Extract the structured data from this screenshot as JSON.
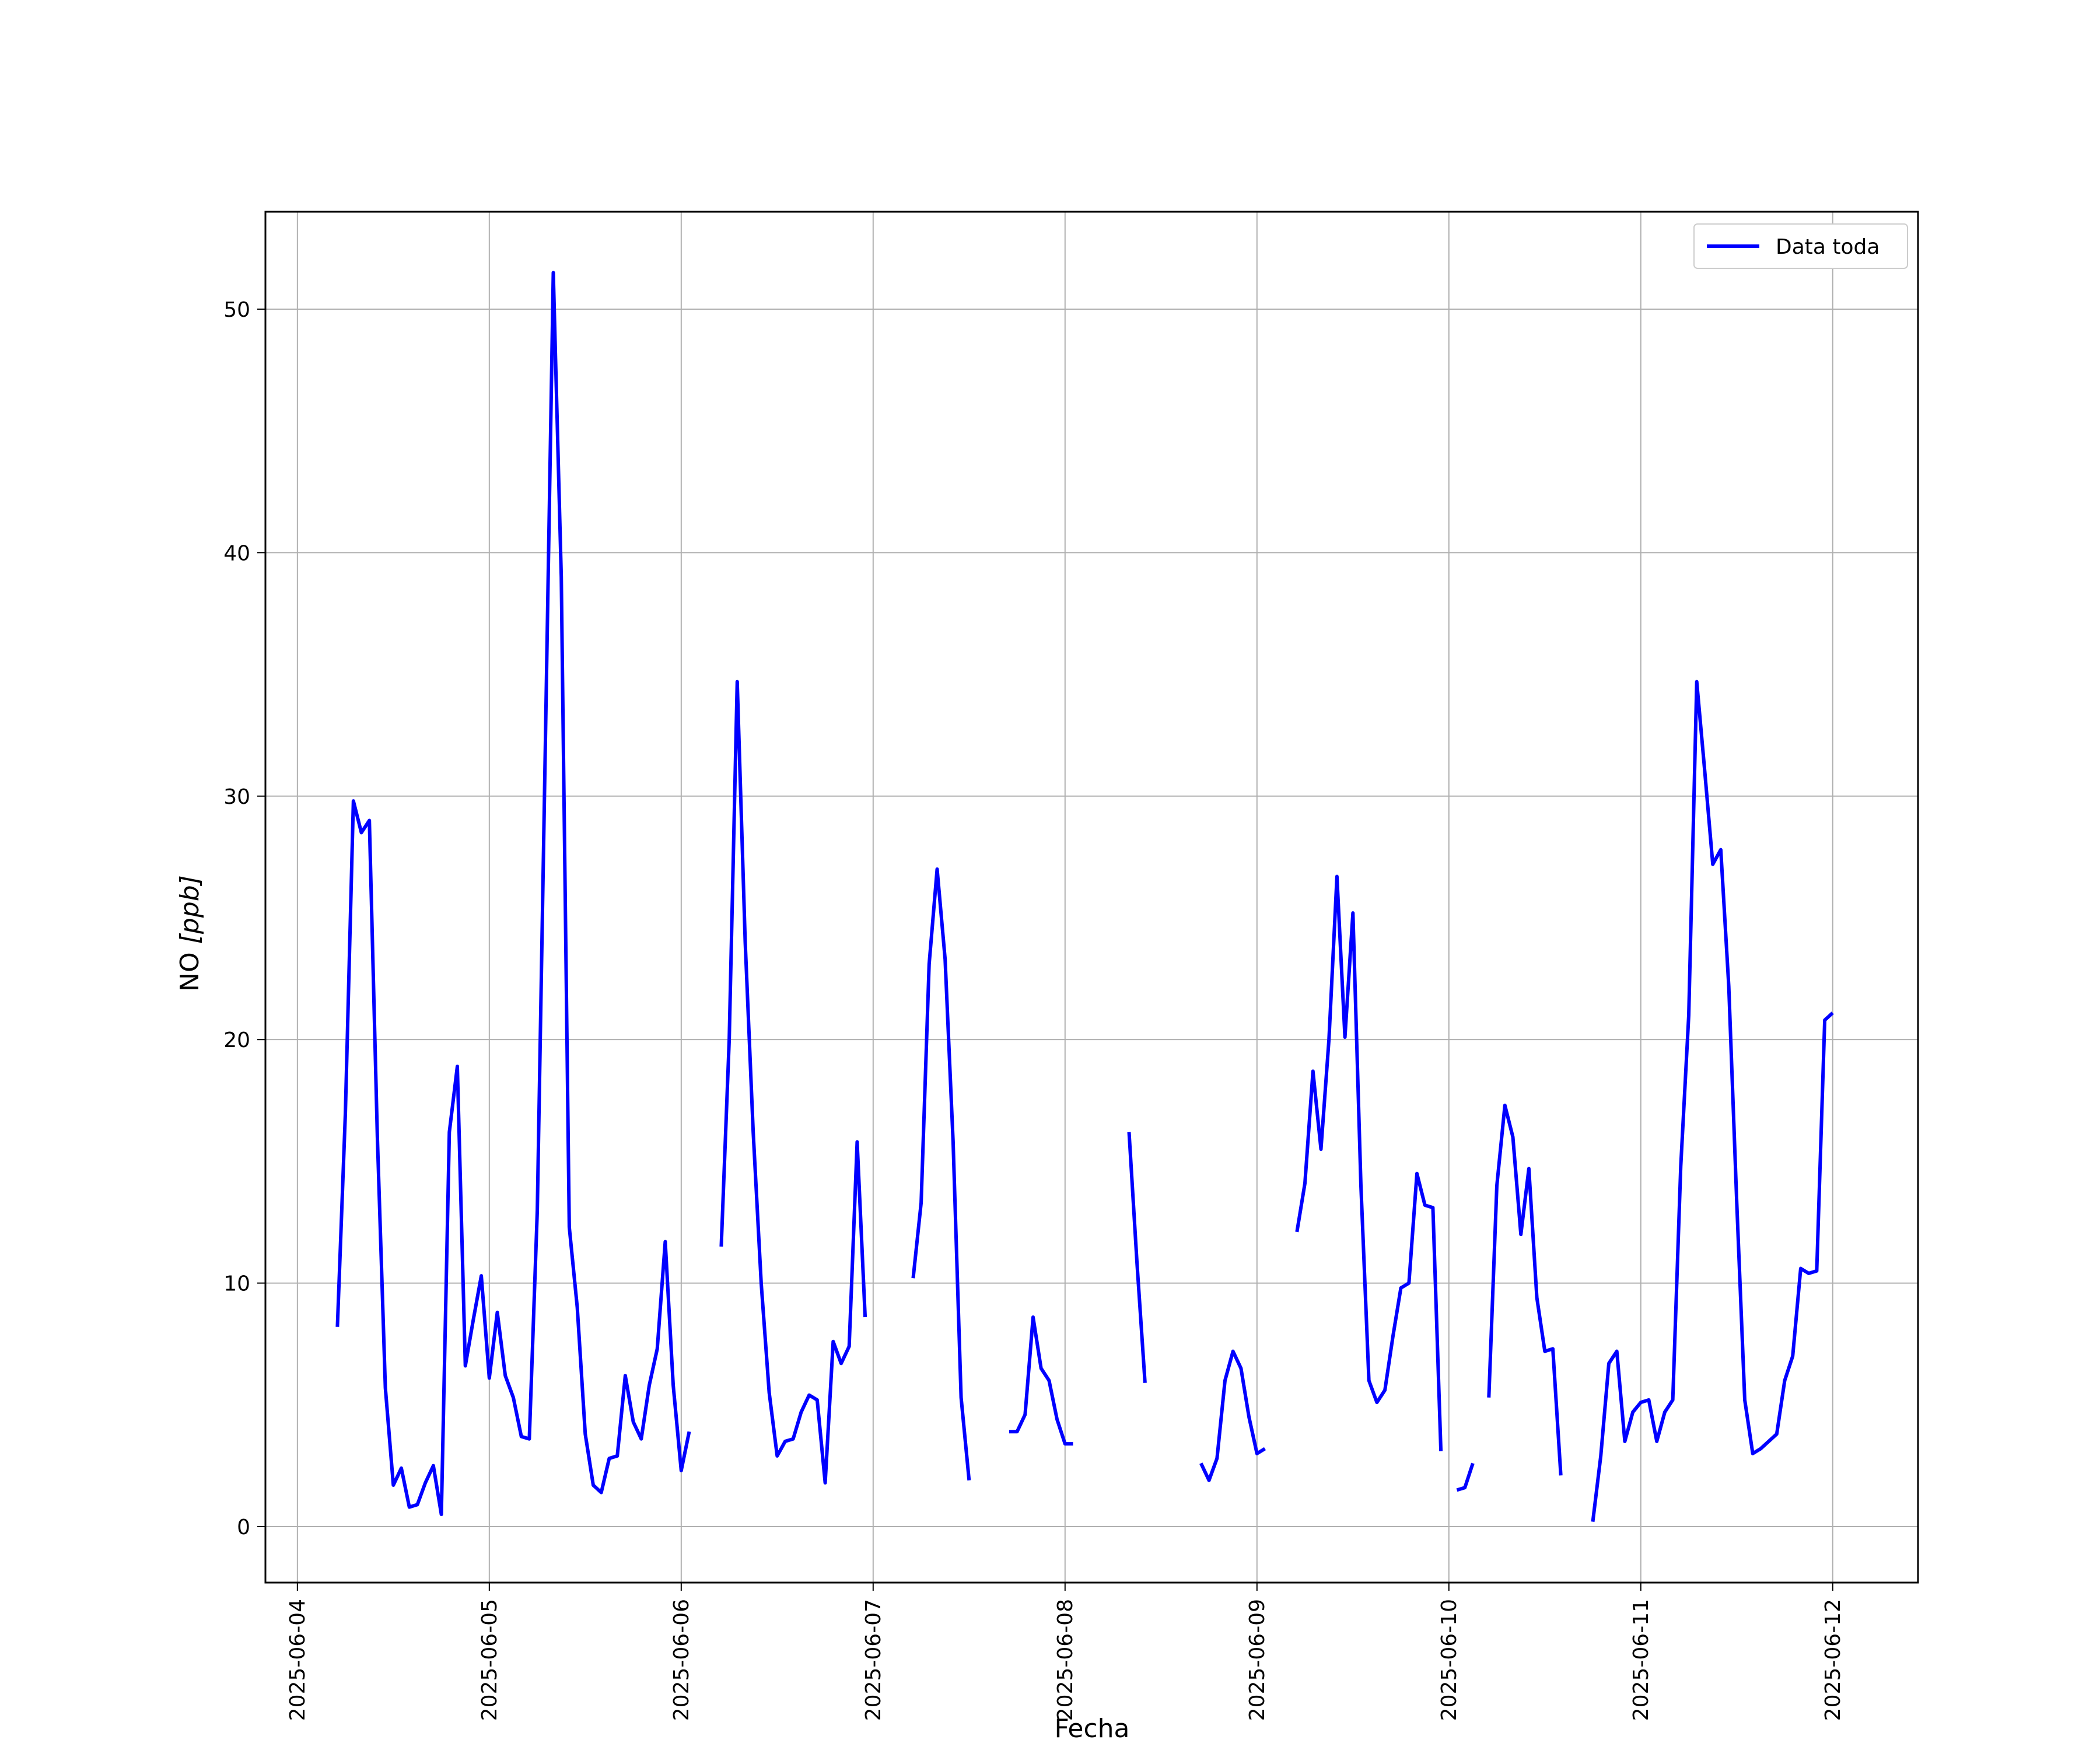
{
  "chart_data": {
    "type": "line",
    "xlabel": "Fecha",
    "ylabel_main": "NO ",
    "ylabel_unit": "[ppb]",
    "x_ticks": [
      "2025-06-04",
      "2025-06-05",
      "2025-06-06",
      "2025-06-07",
      "2025-06-08",
      "2025-06-09",
      "2025-06-10",
      "2025-06-11",
      "2025-06-12"
    ],
    "y_ticks": [
      0,
      10,
      20,
      30,
      40,
      50
    ],
    "xlim": [
      "2025-06-03 20:00",
      "2025-06-12 10:40"
    ],
    "ylim": [
      -2.3,
      54
    ],
    "grid": true,
    "legend_position": "top-right",
    "series": [
      {
        "name": "Data toda",
        "color": "#0000ff",
        "segments": [
          [
            [
              "2025-06-04 05:00",
              8.2
            ],
            [
              "2025-06-04 06:00",
              17
            ],
            [
              "2025-06-04 07:00",
              29.8
            ],
            [
              "2025-06-04 08:00",
              28.5
            ],
            [
              "2025-06-04 09:00",
              29
            ],
            [
              "2025-06-04 10:00",
              16
            ],
            [
              "2025-06-04 11:00",
              5.7
            ],
            [
              "2025-06-04 12:00",
              1.7
            ],
            [
              "2025-06-04 13:00",
              2.4
            ],
            [
              "2025-06-04 14:00",
              0.8
            ],
            [
              "2025-06-04 15:00",
              0.9
            ],
            [
              "2025-06-04 16:00",
              1.8
            ],
            [
              "2025-06-04 17:00",
              2.5
            ],
            [
              "2025-06-04 18:00",
              0.5
            ],
            [
              "2025-06-04 19:00",
              16.2
            ],
            [
              "2025-06-04 20:00",
              18.9
            ],
            [
              "2025-06-04 21:00",
              6.6
            ],
            [
              "2025-06-04 22:00",
              8.5
            ],
            [
              "2025-06-04 23:00",
              10.3
            ],
            [
              "2025-06-05 00:00",
              6.1
            ],
            [
              "2025-06-05 01:00",
              8.8
            ],
            [
              "2025-06-05 02:00",
              6.2
            ],
            [
              "2025-06-05 03:00",
              5.3
            ],
            [
              "2025-06-05 04:00",
              3.7
            ],
            [
              "2025-06-05 05:00",
              3.6
            ],
            [
              "2025-06-05 06:00",
              13
            ],
            [
              "2025-06-05 07:00",
              32
            ],
            [
              "2025-06-05 08:00",
              51.5
            ],
            [
              "2025-06-05 09:00",
              39
            ],
            [
              "2025-06-05 10:00",
              12.3
            ],
            [
              "2025-06-05 11:00",
              9
            ],
            [
              "2025-06-05 12:00",
              3.8
            ],
            [
              "2025-06-05 13:00",
              1.7
            ],
            [
              "2025-06-05 14:00",
              1.4
            ],
            [
              "2025-06-05 15:00",
              2.8
            ],
            [
              "2025-06-05 16:00",
              2.9
            ],
            [
              "2025-06-05 17:00",
              6.2
            ],
            [
              "2025-06-05 18:00",
              4.3
            ],
            [
              "2025-06-05 19:00",
              3.6
            ],
            [
              "2025-06-05 20:00",
              5.8
            ],
            [
              "2025-06-05 21:00",
              7.3
            ],
            [
              "2025-06-05 22:00",
              11.7
            ],
            [
              "2025-06-05 23:00",
              5.8
            ],
            [
              "2025-06-06 00:00",
              2.3
            ],
            [
              "2025-06-06 01:00",
              3.9
            ]
          ],
          [
            [
              "2025-06-06 05:00",
              11.5
            ],
            [
              "2025-06-06 06:00",
              20
            ],
            [
              "2025-06-06 07:00",
              34.7
            ],
            [
              "2025-06-06 08:00",
              24
            ],
            [
              "2025-06-06 09:00",
              16.2
            ],
            [
              "2025-06-06 10:00",
              10
            ],
            [
              "2025-06-06 11:00",
              5.5
            ],
            [
              "2025-06-06 12:00",
              2.9
            ],
            [
              "2025-06-06 13:00",
              3.5
            ],
            [
              "2025-06-06 14:00",
              3.6
            ],
            [
              "2025-06-06 15:00",
              4.7
            ],
            [
              "2025-06-06 16:00",
              5.4
            ],
            [
              "2025-06-06 17:00",
              5.2
            ],
            [
              "2025-06-06 18:00",
              1.8
            ],
            [
              "2025-06-06 19:00",
              7.6
            ],
            [
              "2025-06-06 20:00",
              6.7
            ],
            [
              "2025-06-06 21:00",
              7.4
            ],
            [
              "2025-06-06 22:00",
              15.8
            ],
            [
              "2025-06-06 23:00",
              8.6
            ]
          ],
          [
            [
              "2025-06-07 05:00",
              10.2
            ],
            [
              "2025-06-07 06:00",
              13.3
            ],
            [
              "2025-06-07 07:00",
              23.1
            ],
            [
              "2025-06-07 08:00",
              27
            ],
            [
              "2025-06-07 09:00",
              23.3
            ],
            [
              "2025-06-07 10:00",
              15.8
            ],
            [
              "2025-06-07 11:00",
              5.3
            ],
            [
              "2025-06-07 12:00",
              1.9
            ]
          ],
          [
            [
              "2025-06-07 17:00",
              3.9
            ],
            [
              "2025-06-07 18:00",
              3.9
            ],
            [
              "2025-06-07 19:00",
              4.6
            ],
            [
              "2025-06-07 20:00",
              8.6
            ],
            [
              "2025-06-07 21:00",
              6.5
            ],
            [
              "2025-06-07 22:00",
              6
            ],
            [
              "2025-06-07 23:00",
              4.4
            ],
            [
              "2025-06-08 00:00",
              3.4
            ],
            [
              "2025-06-08 01:00",
              3.4
            ]
          ],
          [
            [
              "2025-06-08 08:00",
              16.2
            ],
            [
              "2025-06-08 09:00",
              10.8
            ],
            [
              "2025-06-08 10:00",
              5.9
            ]
          ],
          [
            [
              "2025-06-08 17:00",
              2.6
            ],
            [
              "2025-06-08 18:00",
              1.9
            ],
            [
              "2025-06-08 19:00",
              2.8
            ],
            [
              "2025-06-08 20:00",
              6
            ],
            [
              "2025-06-08 21:00",
              7.2
            ],
            [
              "2025-06-08 22:00",
              6.5
            ],
            [
              "2025-06-08 23:00",
              4.5
            ],
            [
              "2025-06-09 00:00",
              3
            ],
            [
              "2025-06-09 01:00",
              3.2
            ]
          ],
          [
            [
              "2025-06-09 05:00",
              12.1
            ],
            [
              "2025-06-09 06:00",
              14.1
            ],
            [
              "2025-06-09 07:00",
              18.7
            ],
            [
              "2025-06-09 08:00",
              15.5
            ],
            [
              "2025-06-09 09:00",
              20
            ],
            [
              "2025-06-09 10:00",
              26.7
            ],
            [
              "2025-06-09 11:00",
              20.1
            ],
            [
              "2025-06-09 12:00",
              25.2
            ],
            [
              "2025-06-09 13:00",
              14
            ],
            [
              "2025-06-09 14:00",
              6
            ],
            [
              "2025-06-09 15:00",
              5.1
            ],
            [
              "2025-06-09 16:00",
              5.6
            ],
            [
              "2025-06-09 17:00",
              7.8
            ],
            [
              "2025-06-09 18:00",
              9.8
            ],
            [
              "2025-06-09 19:00",
              10
            ],
            [
              "2025-06-09 20:00",
              14.5
            ],
            [
              "2025-06-09 21:00",
              13.2
            ],
            [
              "2025-06-09 22:00",
              13.1
            ],
            [
              "2025-06-09 23:00",
              3.1
            ]
          ],
          [
            [
              "2025-06-10 01:00",
              1.5
            ],
            [
              "2025-06-10 02:00",
              1.6
            ],
            [
              "2025-06-10 03:00",
              2.6
            ]
          ],
          [
            [
              "2025-06-10 05:00",
              5.3
            ],
            [
              "2025-06-10 06:00",
              14
            ],
            [
              "2025-06-10 07:00",
              17.3
            ],
            [
              "2025-06-10 08:00",
              16
            ],
            [
              "2025-06-10 09:00",
              12
            ],
            [
              "2025-06-10 10:00",
              14.7
            ],
            [
              "2025-06-10 11:00",
              9.4
            ],
            [
              "2025-06-10 12:00",
              7.2
            ],
            [
              "2025-06-10 13:00",
              7.3
            ],
            [
              "2025-06-10 14:00",
              2.1
            ]
          ],
          [
            [
              "2025-06-10 18:00",
              0.2
            ],
            [
              "2025-06-10 19:00",
              2.9
            ],
            [
              "2025-06-10 20:00",
              6.7
            ],
            [
              "2025-06-10 21:00",
              7.2
            ],
            [
              "2025-06-10 22:00",
              3.5
            ],
            [
              "2025-06-10 23:00",
              4.7
            ],
            [
              "2025-06-11 00:00",
              5.1
            ],
            [
              "2025-06-11 01:00",
              5.2
            ],
            [
              "2025-06-11 02:00",
              3.5
            ],
            [
              "2025-06-11 03:00",
              4.7
            ],
            [
              "2025-06-11 04:00",
              5.2
            ],
            [
              "2025-06-11 05:00",
              14.8
            ],
            [
              "2025-06-11 06:00",
              21
            ],
            [
              "2025-06-11 07:00",
              34.7
            ],
            [
              "2025-06-11 08:00",
              31
            ],
            [
              "2025-06-11 09:00",
              27.2
            ],
            [
              "2025-06-11 10:00",
              27.8
            ],
            [
              "2025-06-11 11:00",
              22.2
            ],
            [
              "2025-06-11 12:00",
              13.3
            ],
            [
              "2025-06-11 13:00",
              5.2
            ],
            [
              "2025-06-11 14:00",
              3
            ],
            [
              "2025-06-11 15:00",
              3.2
            ],
            [
              "2025-06-11 16:00",
              3.5
            ],
            [
              "2025-06-11 17:00",
              3.8
            ],
            [
              "2025-06-11 18:00",
              6
            ],
            [
              "2025-06-11 19:00",
              7
            ],
            [
              "2025-06-11 20:00",
              10.6
            ],
            [
              "2025-06-11 21:00",
              10.4
            ],
            [
              "2025-06-11 22:00",
              10.5
            ],
            [
              "2025-06-11 23:00",
              20.8
            ],
            [
              "2025-06-12 00:00",
              21.1
            ]
          ]
        ]
      }
    ]
  }
}
